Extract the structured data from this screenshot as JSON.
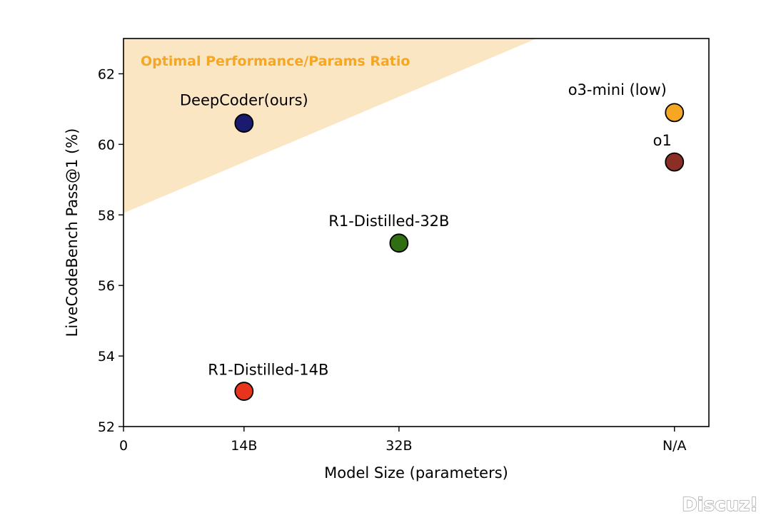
{
  "chart_data": {
    "type": "scatter",
    "title": "",
    "xlabel": "Model Size (parameters)",
    "ylabel": "LiveCodeBench Pass@1 (%)",
    "x_ticks": [
      {
        "value": 0,
        "label": "0"
      },
      {
        "value": 14,
        "label": "14B"
      },
      {
        "value": 32,
        "label": "32B"
      },
      {
        "value": 64,
        "label": "N/A"
      }
    ],
    "y_ticks": [
      52,
      54,
      56,
      58,
      60,
      62
    ],
    "xlim": [
      0,
      68
    ],
    "ylim": [
      52,
      63
    ],
    "grid": false,
    "legend": "none",
    "shaded_region": {
      "label": "Optimal Performance/Params Ratio",
      "color": "#fbe6c4",
      "label_color": "#f5a623",
      "boundary": [
        [
          0,
          58.05
        ],
        [
          48,
          63
        ]
      ]
    },
    "points": [
      {
        "label": "DeepCoder(ours)",
        "x": 14,
        "y": 60.6,
        "color": "#1a1a6e"
      },
      {
        "label": "R1-Distilled-32B",
        "x": 32,
        "y": 57.2,
        "color": "#2f6e12"
      },
      {
        "label": "R1-Distilled-14B",
        "x": 14,
        "y": 53.0,
        "color": "#e8341c"
      },
      {
        "label": "o3-mini (low)",
        "x": 64,
        "y": 60.9,
        "color": "#f5a623"
      },
      {
        "label": "o1",
        "x": 64,
        "y": 59.5,
        "color": "#8b2e25"
      }
    ]
  },
  "watermark": "Discuz!"
}
